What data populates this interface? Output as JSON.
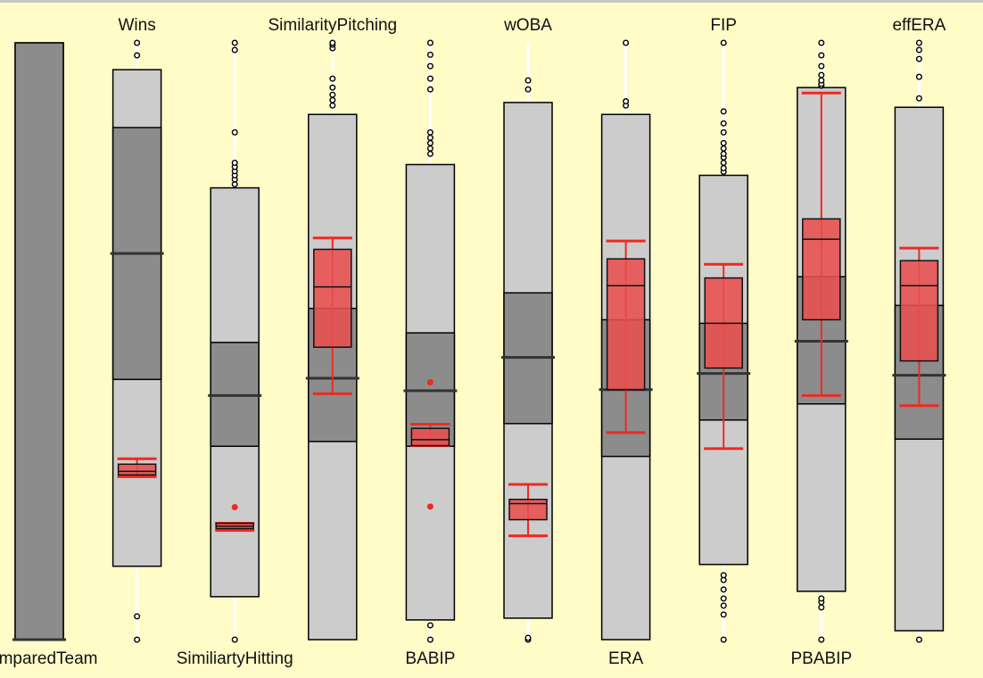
{
  "chart_data": {
    "type": "boxplot",
    "title": "",
    "xlabel": "",
    "ylabel": "",
    "ylim": [
      0,
      1
    ],
    "grid": false,
    "legend": "none",
    "colors": {
      "background": "#fffcc8",
      "whisker_line": "#ffffff",
      "outer_box": "#cccccc",
      "inner_box": "#8c8c8c",
      "median": "#333333",
      "highlight_fill": "#e85050",
      "highlight_stroke": "#ee2a22"
    },
    "columns": [
      {
        "name": "comparedTeam",
        "label_position": "bottom",
        "box": {
          "q0": 0.0,
          "q1": 0.0,
          "median": 0.0,
          "q3": 1.0,
          "q4": 1.0
        },
        "outliers": [],
        "highlight": null
      },
      {
        "name": "Wins",
        "label_position": "top",
        "box": {
          "q0": 0.123,
          "q1": 0.436,
          "median": 0.647,
          "q3": 0.858,
          "q4": 0.955
        },
        "outliers": [
          0.0,
          0.039,
          0.979,
          1.0
        ],
        "highlight": {
          "whisker_low": 0.273,
          "q1": 0.276,
          "median": 0.282,
          "q3": 0.294,
          "whisker_high": 0.303,
          "points": []
        }
      },
      {
        "name": "SimiliartyHitting",
        "label_position": "bottom",
        "box": {
          "q0": 0.072,
          "q1": 0.324,
          "median": 0.409,
          "q3": 0.498,
          "q4": 0.757
        },
        "outliers": [
          0.0,
          0.763,
          0.771,
          0.778,
          0.785,
          0.792,
          0.799,
          0.85,
          0.988,
          1.0
        ],
        "highlight": {
          "whisker_low": 0.183,
          "q1": 0.186,
          "median": 0.19,
          "q3": 0.195,
          "whisker_high": 0.195,
          "points": [
            0.222
          ]
        }
      },
      {
        "name": "SimilarityPitching",
        "label_position": "top",
        "box": {
          "q0": 0.0,
          "q1": 0.332,
          "median": 0.438,
          "q3": 0.555,
          "q4": 0.88
        },
        "outliers": [
          0.895,
          0.904,
          0.913,
          0.925,
          0.94,
          0.991,
          0.997,
          1.0
        ],
        "highlight": {
          "whisker_low": 0.412,
          "q1": 0.49,
          "median": 0.591,
          "q3": 0.654,
          "whisker_high": 0.673,
          "points": []
        }
      },
      {
        "name": "BABIP",
        "label_position": "bottom",
        "box": {
          "q0": 0.033,
          "q1": 0.324,
          "median": 0.417,
          "q3": 0.514,
          "q4": 0.796
        },
        "outliers": [
          0.0,
          0.024,
          0.814,
          0.823,
          0.832,
          0.841,
          0.85,
          0.922,
          0.94,
          0.961,
          0.98,
          1.0
        ],
        "highlight": {
          "whisker_low": 0.325,
          "q1": 0.325,
          "median": 0.335,
          "q3": 0.354,
          "whisker_high": 0.361,
          "points": [
            0.223,
            0.431
          ]
        }
      },
      {
        "name": "wOBA",
        "label_position": "top",
        "box": {
          "q0": 0.036,
          "q1": 0.362,
          "median": 0.473,
          "q3": 0.581,
          "q4": 0.9
        },
        "outliers": [
          0.0,
          0.003,
          0.922,
          0.937
        ],
        "highlight": {
          "whisker_low": 0.174,
          "q1": 0.201,
          "median": 0.228,
          "q3": 0.235,
          "whisker_high": 0.26,
          "points": []
        }
      },
      {
        "name": "ERA",
        "label_position": "bottom",
        "box": {
          "q0": 0.0,
          "q1": 0.307,
          "median": 0.419,
          "q3": 0.536,
          "q4": 0.88
        },
        "outliers": [
          0.895,
          0.902,
          1.0
        ],
        "highlight": {
          "whisker_low": 0.347,
          "q1": 0.419,
          "median": 0.593,
          "q3": 0.638,
          "whisker_high": 0.668,
          "points": []
        }
      },
      {
        "name": "FIP",
        "label_position": "top",
        "box": {
          "q0": 0.126,
          "q1": 0.368,
          "median": 0.446,
          "q3": 0.53,
          "q4": 0.778
        },
        "outliers": [
          0.0,
          0.042,
          0.057,
          0.069,
          0.084,
          0.1,
          0.108,
          0.784,
          0.79,
          0.799,
          0.808,
          0.814,
          0.823,
          0.832,
          0.85,
          0.865,
          0.885,
          1.0
        ],
        "highlight": {
          "whisker_low": 0.32,
          "q1": 0.455,
          "median": 0.53,
          "q3": 0.606,
          "whisker_high": 0.629,
          "points": []
        }
      },
      {
        "name": "PBABIP",
        "label_position": "bottom",
        "box": {
          "q0": 0.081,
          "q1": 0.395,
          "median": 0.5,
          "q3": 0.608,
          "q4": 0.925
        },
        "outliers": [
          0.0,
          0.054,
          0.063,
          0.069,
          0.928,
          0.931,
          0.937,
          0.946,
          0.961,
          0.979,
          1.0
        ],
        "highlight": {
          "whisker_low": 0.409,
          "q1": 0.536,
          "median": 0.671,
          "q3": 0.705,
          "whisker_high": 0.916,
          "points": []
        }
      },
      {
        "name": "effERA",
        "label_position": "top",
        "box": {
          "q0": 0.015,
          "q1": 0.336,
          "median": 0.443,
          "q3": 0.56,
          "q4": 0.892
        },
        "outliers": [
          0.0,
          0.907,
          0.943,
          0.973,
          0.988,
          1.0
        ],
        "highlight": {
          "whisker_low": 0.392,
          "q1": 0.467,
          "median": 0.593,
          "q3": 0.635,
          "whisker_high": 0.656,
          "points": []
        }
      }
    ]
  }
}
